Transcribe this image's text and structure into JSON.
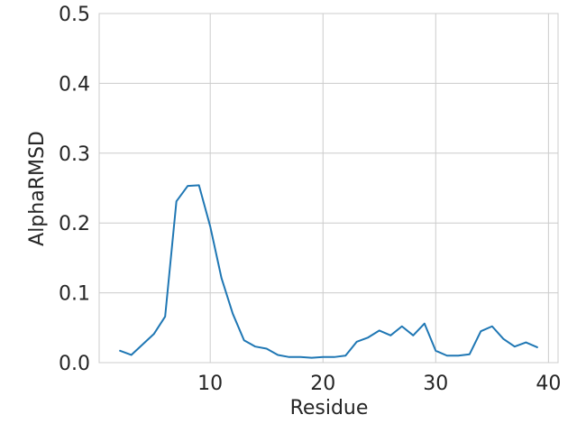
{
  "chart_data": {
    "type": "line",
    "title": "",
    "xlabel": "Residue",
    "ylabel": "AlphaRMSD",
    "xlim": [
      0.15,
      40.85
    ],
    "ylim": [
      0,
      0.5
    ],
    "xticks": [
      10,
      20,
      30,
      40
    ],
    "yticks": [
      0.0,
      0.1,
      0.2,
      0.3,
      0.4,
      0.5
    ],
    "xtick_labels": [
      "10",
      "20",
      "30",
      "40"
    ],
    "ytick_labels": [
      "0.0",
      "0.1",
      "0.2",
      "0.3",
      "0.4",
      "0.5"
    ],
    "grid": true,
    "line_color": "#1f77b4",
    "grid_color": "#cccccc",
    "series": [
      {
        "x": [
          2,
          3,
          4,
          5,
          6,
          7,
          8,
          9,
          10,
          11,
          12,
          13,
          14,
          15,
          16,
          17,
          18,
          19,
          20,
          21,
          22,
          23,
          24,
          25,
          26,
          27,
          28,
          29,
          30,
          31,
          32,
          33,
          34,
          35,
          36,
          37,
          38,
          39
        ],
        "values": [
          0.017,
          0.011,
          0.026,
          0.041,
          0.066,
          0.231,
          0.253,
          0.254,
          0.195,
          0.121,
          0.07,
          0.032,
          0.023,
          0.02,
          0.011,
          0.008,
          0.008,
          0.007,
          0.008,
          0.008,
          0.01,
          0.03,
          0.036,
          0.046,
          0.039,
          0.052,
          0.039,
          0.056,
          0.017,
          0.01,
          0.01,
          0.012,
          0.045,
          0.052,
          0.034,
          0.023,
          0.029,
          0.022
        ]
      }
    ]
  }
}
